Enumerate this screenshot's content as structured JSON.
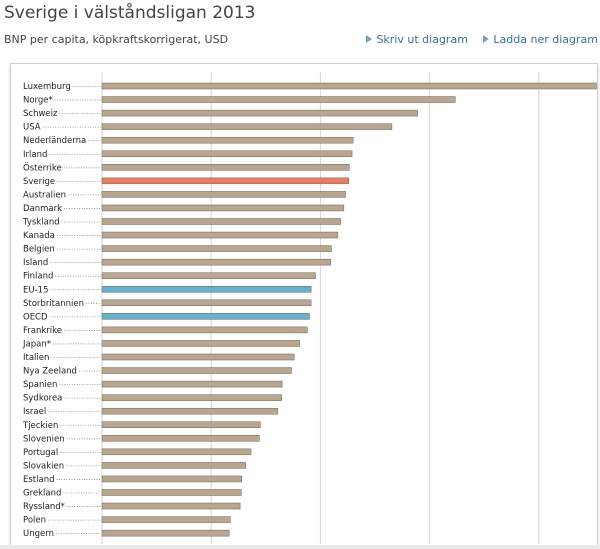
{
  "header": {
    "title": "Sverige i välståndsligan 2013",
    "subtitle": "BNP per capita, köpkraftskorrigerat, USD",
    "print_label": "Skriv ut diagram",
    "download_label": "Ladda ner diagram"
  },
  "colors": {
    "default_bar": "#b8a690",
    "highlight_bar": "#e87c62",
    "group_bar": "#66b1cc",
    "grid": "#d6d6d6"
  },
  "chart_data": {
    "type": "bar",
    "orientation": "horizontal",
    "title": "Sverige i välståndsligan 2013",
    "subtitle": "BNP per capita, köpkraftskorrigerat, USD",
    "xlim": [
      0,
      100000
    ],
    "grid": true,
    "categories": [
      "Luxemburg",
      "Norge*",
      "Schweiz",
      "USA",
      "Nederländerna",
      "Irland",
      "Österrike",
      "Sverige",
      "Australien",
      "Danmark",
      "Tyskland",
      "Kanada",
      "Belgien",
      "Island",
      "Finland",
      "EU-15",
      "Storbritannien",
      "OECD",
      "Frankrike",
      "Japan*",
      "Italien",
      "Nya Zeeland",
      "Spanien",
      "Sydkorea",
      "Israel",
      "Tjeckien",
      "Slovenien",
      "Portugal",
      "Slovakien",
      "Estland",
      "Grekland",
      "Ryssland*",
      "Polen",
      "Ungern"
    ],
    "values": [
      91200,
      64700,
      57800,
      53100,
      46000,
      45800,
      45300,
      45200,
      44600,
      44300,
      43700,
      43200,
      42000,
      41900,
      39100,
      38300,
      38300,
      38000,
      37600,
      36200,
      35200,
      34700,
      33000,
      32900,
      32200,
      29000,
      28800,
      27300,
      26300,
      25600,
      25500,
      25300,
      23500,
      23300
    ],
    "highlight": {
      "Sverige": "highlight_bar",
      "EU-15": "group_bar",
      "OECD": "group_bar"
    }
  }
}
